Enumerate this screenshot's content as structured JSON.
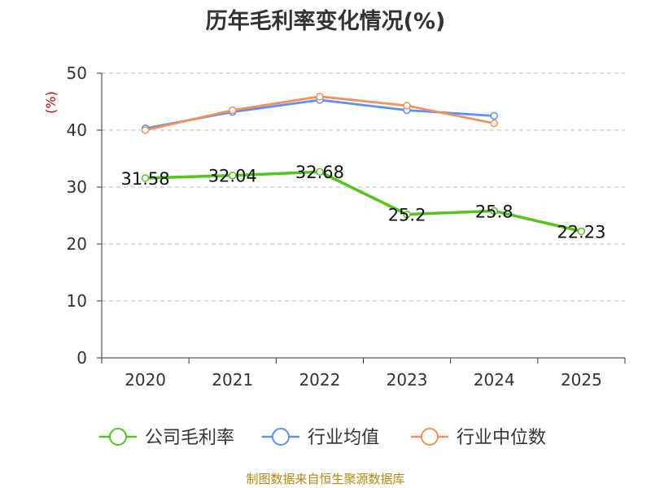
{
  "chart_data": {
    "type": "line",
    "title": "历年毛利率变化情况(%)",
    "ylabel": "(%)",
    "xlabel": "",
    "categories": [
      "2020",
      "2021",
      "2022",
      "2023",
      "2024",
      "2025"
    ],
    "ylim": [
      0,
      50
    ],
    "yticks": [
      0,
      10,
      20,
      30,
      40,
      50
    ],
    "grid": true,
    "legend_position": "bottom",
    "series": [
      {
        "name": "公司毛利率",
        "color": "#52c41a",
        "values": [
          31.58,
          32.04,
          32.68,
          25.2,
          25.8,
          22.23
        ],
        "labels": [
          "31.58",
          "32.04",
          "32.68",
          "25.2",
          "25.8",
          "22.23"
        ],
        "show_labels": true
      },
      {
        "name": "行业均值",
        "color": "#5b8ff9",
        "values": [
          40.3,
          43.2,
          45.3,
          43.5,
          42.5,
          null
        ],
        "show_labels": false
      },
      {
        "name": "行业中位数",
        "color": "#f6905a",
        "values": [
          40.0,
          43.5,
          45.9,
          44.3,
          41.2,
          null
        ],
        "show_labels": false
      }
    ]
  },
  "source": "制图数据来自恒生聚源数据库",
  "colors": {
    "axis": "#333333",
    "grid": "#bbbbbb",
    "ylabel": "#cc0000"
  }
}
